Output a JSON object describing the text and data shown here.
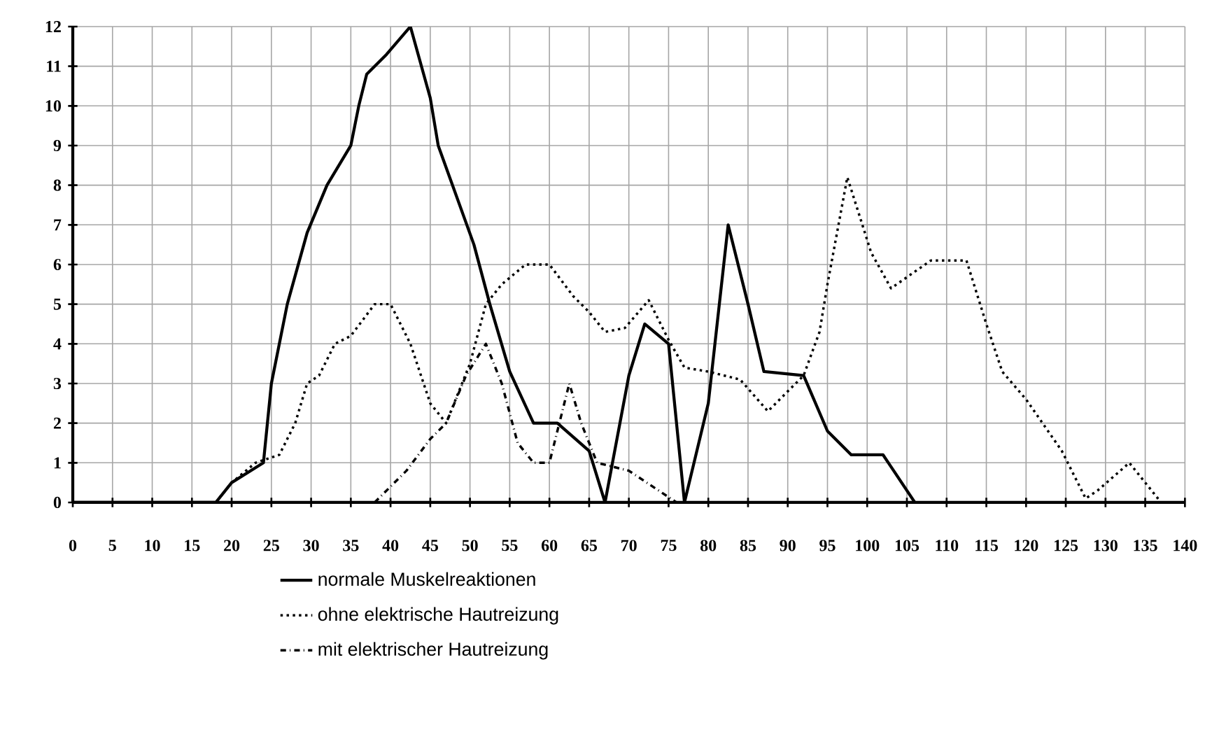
{
  "chart_data": {
    "type": "line",
    "xlim": [
      0,
      140
    ],
    "xticks": [
      0,
      5,
      10,
      15,
      20,
      25,
      30,
      35,
      40,
      45,
      50,
      55,
      60,
      65,
      70,
      75,
      80,
      85,
      90,
      95,
      100,
      105,
      110,
      115,
      120,
      125,
      130,
      135,
      140
    ],
    "ylim": [
      0,
      12
    ],
    "yticks": [
      0,
      1,
      2,
      3,
      4,
      5,
      6,
      7,
      8,
      9,
      10,
      11,
      12
    ],
    "grid": true,
    "legend": "bottom",
    "marker": "none",
    "series": [
      {
        "name": "normale Muskelreaktionen",
        "color": "#000000",
        "line_style": "solid",
        "x": [
          0,
          18,
          20,
          24,
          25,
          27,
          29.5,
          32,
          35,
          36,
          37,
          39.5,
          42.5,
          45,
          46,
          50.5,
          52.5,
          55,
          58,
          61,
          65,
          67,
          70,
          72,
          75,
          77,
          80,
          82.5,
          85,
          87,
          92,
          95,
          98,
          102,
          106
        ],
        "values": [
          0,
          0,
          0.5,
          1,
          3,
          5,
          6.8,
          8,
          9,
          10,
          10.8,
          11.3,
          12,
          10.2,
          9,
          6.5,
          5,
          3.3,
          2,
          2,
          1.3,
          0,
          3.2,
          4.5,
          4,
          0,
          2.5,
          7,
          5,
          3.3,
          3.2,
          1.8,
          1.2,
          1.2,
          0
        ]
      },
      {
        "name": "ohne elektrische Hautreizung",
        "color": "#000000",
        "line_style": "dotted",
        "x": [
          18,
          20,
          23,
          26,
          28,
          29.5,
          31,
          33,
          35,
          38,
          40,
          42.5,
          45,
          47,
          50,
          52,
          54,
          57,
          60,
          63,
          65,
          67,
          69.5,
          72.5,
          75,
          77,
          80,
          84,
          87.5,
          90,
          92,
          94,
          95,
          97.5,
          100.5,
          103,
          108,
          112.5,
          115,
          117,
          120,
          124.5,
          127.5,
          129,
          133,
          137
        ],
        "values": [
          0,
          0.5,
          1,
          1.2,
          2,
          3,
          3.2,
          4,
          4.2,
          5,
          5,
          4,
          2.5,
          2,
          3.5,
          5,
          5.5,
          6,
          6,
          5.2,
          4.8,
          4.3,
          4.4,
          5.1,
          4.1,
          3.4,
          3.3,
          3.1,
          2.3,
          2.8,
          3.2,
          4.3,
          5.5,
          8.2,
          6.3,
          5.4,
          6.1,
          6.1,
          4.5,
          3.3,
          2.6,
          1.3,
          0.1,
          0.3,
          1,
          0
        ]
      },
      {
        "name": "mit elektrischer Hautreizung",
        "color": "#000000",
        "line_style": "dashdot",
        "x": [
          38,
          42,
          45,
          47,
          49.5,
          52,
          54,
          56,
          58,
          60,
          62.5,
          64,
          66,
          70,
          76
        ],
        "values": [
          0,
          0.8,
          1.6,
          2,
          3.2,
          4,
          3,
          1.5,
          1,
          1,
          3,
          2,
          1,
          0.8,
          0
        ]
      }
    ]
  }
}
